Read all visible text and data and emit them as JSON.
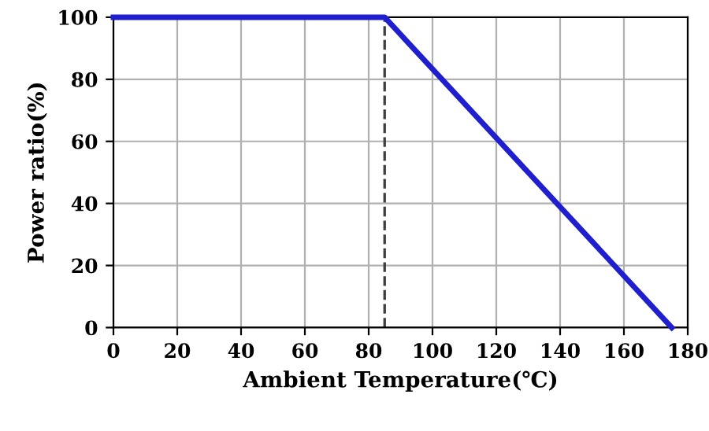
{
  "chart_data": {
    "type": "line",
    "xlabel": "Ambient Temperature(℃)",
    "ylabel": "Power ratio(%)",
    "series": [
      {
        "color": "#1f1fcf",
        "x": [
          0,
          85,
          175
        ],
        "values": [
          100,
          100,
          0
        ]
      }
    ],
    "xlim": [
      0,
      180
    ],
    "xticks": [
      0,
      20,
      40,
      60,
      80,
      100,
      120,
      140,
      160,
      180
    ],
    "ylim": [
      0,
      100
    ],
    "yticks": [
      0,
      20,
      40,
      60,
      80,
      100
    ],
    "grid": true,
    "line_style": "solid",
    "marker": "none",
    "ref_lines": [
      {
        "axis": "x",
        "value": 85,
        "label": null,
        "color": "#404040",
        "line_style": "dashed"
      }
    ]
  }
}
